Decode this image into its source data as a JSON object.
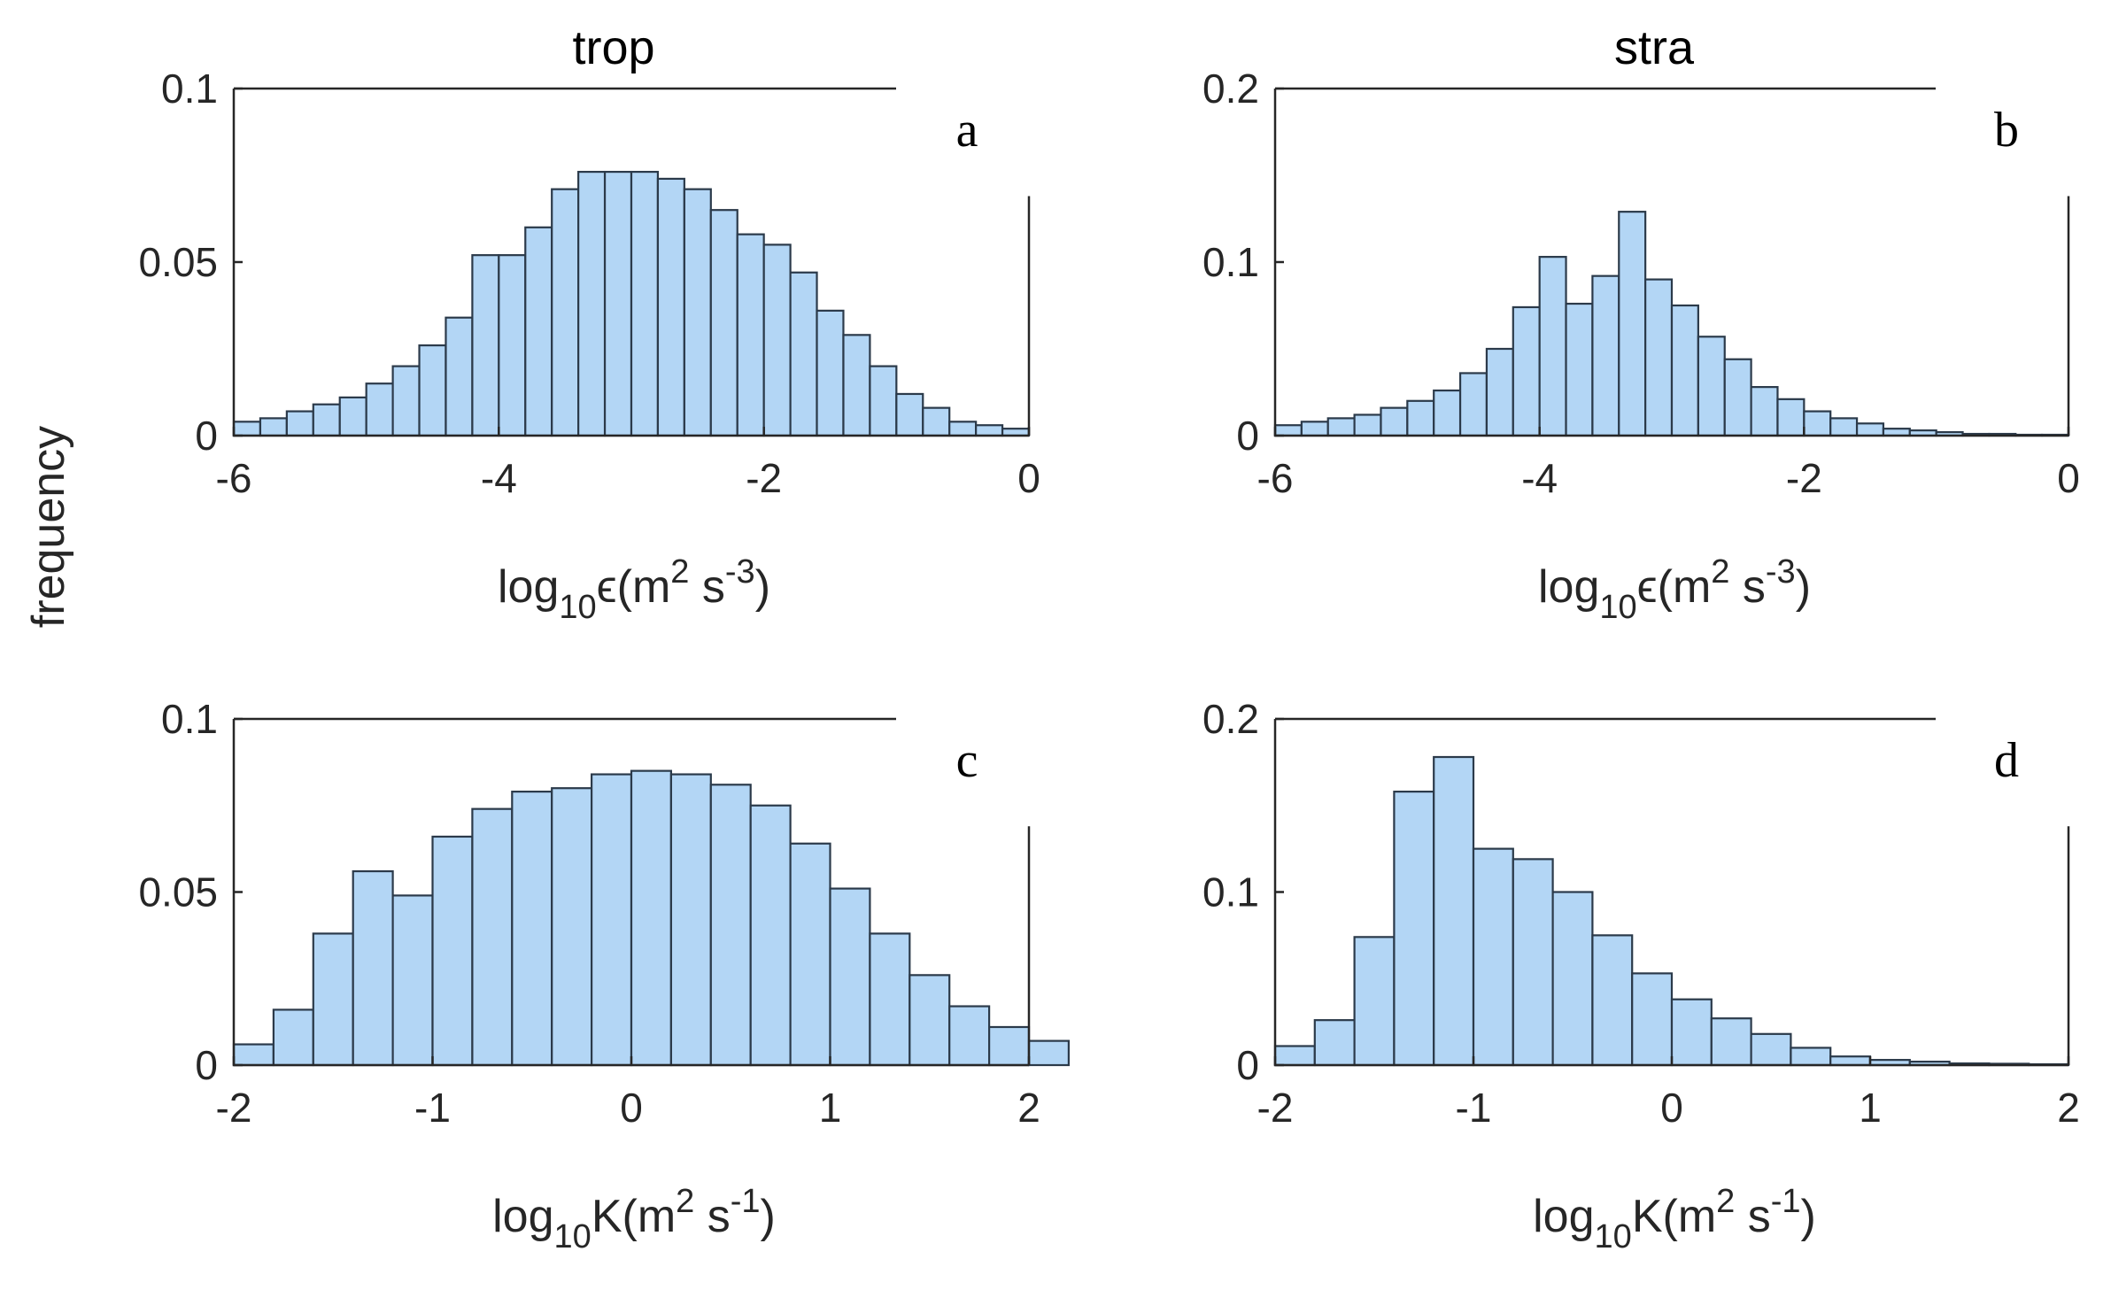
{
  "figure": {
    "ylabel": "frequency",
    "colors": {
      "bar_fill": "#b3d6f5",
      "bar_edge": "#2b3a4a",
      "axis": "#262626"
    }
  },
  "chart_data": [
    {
      "id": "a",
      "type": "bar",
      "title": "trop",
      "panel_label": "a",
      "xlabel_parts": {
        "pre": "log",
        "sub": "10",
        "sym": "ϵ",
        "unit": "(m",
        "p1": "2",
        "mid": " s",
        "p2": "-3",
        "close": ")"
      },
      "xlim": [
        -6,
        0
      ],
      "ylim": [
        0,
        0.1
      ],
      "xticks": [
        -6,
        -4,
        -2,
        0
      ],
      "xtick_labels": [
        "-6",
        "-4",
        "-2",
        "0"
      ],
      "yticks": [
        0,
        0.05,
        0.1
      ],
      "ytick_labels": [
        "0",
        "0.05",
        "0.1"
      ],
      "bin_start": -6,
      "bin_width": 0.2,
      "values": [
        0.004,
        0.005,
        0.007,
        0.009,
        0.011,
        0.015,
        0.02,
        0.026,
        0.034,
        0.052,
        0.052,
        0.06,
        0.071,
        0.076,
        0.076,
        0.076,
        0.074,
        0.071,
        0.065,
        0.058,
        0.055,
        0.047,
        0.036,
        0.029,
        0.02,
        0.012,
        0.008,
        0.004,
        0.003,
        0.002
      ]
    },
    {
      "id": "b",
      "type": "bar",
      "title": "stra",
      "panel_label": "b",
      "xlabel_parts": {
        "pre": "log",
        "sub": "10",
        "sym": "ϵ",
        "unit": "(m",
        "p1": "2",
        "mid": " s",
        "p2": "-3",
        "close": ")"
      },
      "xlim": [
        -6,
        0
      ],
      "ylim": [
        0,
        0.2
      ],
      "xticks": [
        -6,
        -4,
        -2,
        0
      ],
      "xtick_labels": [
        "-6",
        "-4",
        "-2",
        "0"
      ],
      "yticks": [
        0,
        0.1,
        0.2
      ],
      "ytick_labels": [
        "0",
        "0.1",
        "0.2"
      ],
      "bin_start": -6,
      "bin_width": 0.2,
      "values": [
        0.006,
        0.008,
        0.01,
        0.012,
        0.016,
        0.02,
        0.026,
        0.036,
        0.05,
        0.074,
        0.103,
        0.076,
        0.092,
        0.129,
        0.09,
        0.075,
        0.057,
        0.044,
        0.028,
        0.021,
        0.014,
        0.01,
        0.007,
        0.004,
        0.003,
        0.002,
        0.001,
        0.001,
        0.0005,
        0.0005
      ]
    },
    {
      "id": "c",
      "type": "bar",
      "title": "",
      "panel_label": "c",
      "xlabel_parts": {
        "pre": "log",
        "sub": "10",
        "sym": "K",
        "unit": "(m",
        "p1": "2",
        "mid": " s",
        "p2": "-1",
        "close": ")"
      },
      "xlim": [
        -2,
        2
      ],
      "ylim": [
        0,
        0.1
      ],
      "xticks": [
        -2,
        -1,
        0,
        1,
        2
      ],
      "xtick_labels": [
        "-2",
        "-1",
        "0",
        "1",
        "2"
      ],
      "yticks": [
        0,
        0.05,
        0.1
      ],
      "ytick_labels": [
        "0",
        "0.05",
        "0.1"
      ],
      "bin_start": -2,
      "bin_width": 0.2,
      "values": [
        0.006,
        0.016,
        0.038,
        0.056,
        0.049,
        0.066,
        0.074,
        0.079,
        0.08,
        0.084,
        0.085,
        0.084,
        0.081,
        0.075,
        0.064,
        0.051,
        0.038,
        0.026,
        0.017,
        0.011,
        0.007
      ]
    },
    {
      "id": "d",
      "type": "bar",
      "title": "",
      "panel_label": "d",
      "xlabel_parts": {
        "pre": "log",
        "sub": "10",
        "sym": "K",
        "unit": "(m",
        "p1": "2",
        "mid": " s",
        "p2": "-1",
        "close": ")"
      },
      "xlim": [
        -2,
        2
      ],
      "ylim": [
        0,
        0.2
      ],
      "xticks": [
        -2,
        -1,
        0,
        1,
        2
      ],
      "xtick_labels": [
        "-2",
        "-1",
        "0",
        "1",
        "2"
      ],
      "yticks": [
        0,
        0.1,
        0.2
      ],
      "ytick_labels": [
        "0",
        "0.1",
        "0.2"
      ],
      "bin_start": -2,
      "bin_width": 0.2,
      "values": [
        0.011,
        0.026,
        0.074,
        0.158,
        0.178,
        0.125,
        0.119,
        0.1,
        0.075,
        0.053,
        0.038,
        0.027,
        0.018,
        0.01,
        0.005,
        0.003,
        0.002,
        0.001,
        0.0008,
        0.0005
      ]
    }
  ]
}
